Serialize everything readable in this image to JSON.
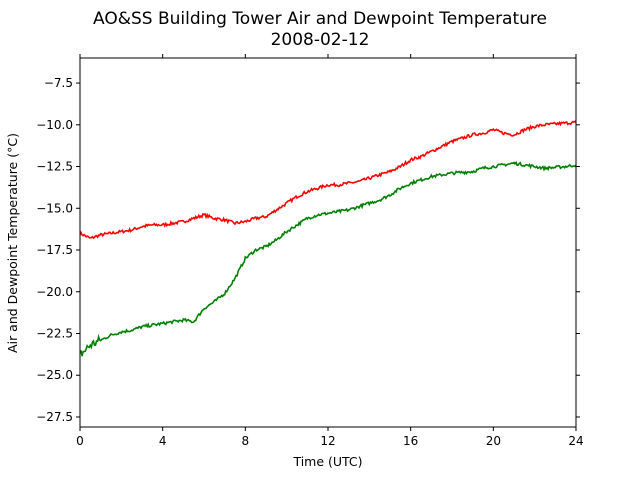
{
  "chart_data": {
    "type": "line",
    "title": "AO&SS Building Tower Air and Dewpoint Temperature",
    "subtitle": "2008-02-12",
    "xlabel": "Time (UTC)",
    "ylabel": "Air and Dewpoint Temperature (°C)",
    "xlim": [
      0,
      24
    ],
    "ylim": [
      -28.1,
      -6.0
    ],
    "x_ticks": [
      0,
      4,
      8,
      12,
      16,
      20,
      24
    ],
    "y_ticks": [
      -27.5,
      -25.0,
      -22.5,
      -20.0,
      -17.5,
      -15.0,
      -12.5,
      -10.0,
      -7.5
    ],
    "grid": false,
    "series": [
      {
        "color": "#ff0000",
        "x": [
          0,
          0.5,
          1,
          1.5,
          2,
          2.5,
          3,
          3.5,
          4,
          4.5,
          5,
          5.5,
          6,
          6.5,
          7,
          7.5,
          8,
          8.5,
          9,
          9.5,
          10,
          10.5,
          11,
          11.5,
          12,
          12.5,
          13,
          13.5,
          14,
          14.5,
          15,
          15.5,
          16,
          16.5,
          17,
          17.5,
          18,
          18.5,
          19,
          19.5,
          20,
          20.5,
          21,
          21.5,
          22,
          22.5,
          23,
          23.5,
          24
        ],
        "values": [
          -16.5,
          -16.8,
          -16.6,
          -16.5,
          -16.4,
          -16.3,
          -16.1,
          -16.0,
          -16.0,
          -15.9,
          -15.8,
          -15.6,
          -15.4,
          -15.6,
          -15.7,
          -15.9,
          -15.8,
          -15.6,
          -15.5,
          -15.1,
          -14.7,
          -14.3,
          -14.0,
          -13.8,
          -13.6,
          -13.6,
          -13.5,
          -13.4,
          -13.2,
          -13.0,
          -12.8,
          -12.5,
          -12.1,
          -11.9,
          -11.6,
          -11.3,
          -11.0,
          -10.8,
          -10.6,
          -10.5,
          -10.3,
          -10.5,
          -10.6,
          -10.3,
          -10.1,
          -10.0,
          -9.95,
          -9.9,
          -9.85
        ]
      },
      {
        "color": "#008000",
        "x": [
          0,
          0.5,
          1,
          1.5,
          2,
          2.5,
          3,
          3.5,
          4,
          4.5,
          5,
          5.5,
          6,
          6.5,
          7,
          7.5,
          8,
          8.5,
          9,
          9.5,
          10,
          10.5,
          11,
          11.5,
          12,
          12.5,
          13,
          13.5,
          14,
          14.5,
          15,
          15.5,
          16,
          16.5,
          17,
          17.5,
          18,
          18.5,
          19,
          19.5,
          20,
          20.5,
          21,
          21.5,
          22,
          22.5,
          23,
          23.5,
          24
        ],
        "values": [
          -23.8,
          -23.2,
          -22.9,
          -22.6,
          -22.4,
          -22.3,
          -22.1,
          -22.0,
          -21.9,
          -21.8,
          -21.7,
          -21.8,
          -21.0,
          -20.6,
          -20.1,
          -19.2,
          -18.0,
          -17.5,
          -17.3,
          -16.9,
          -16.4,
          -16.0,
          -15.6,
          -15.4,
          -15.3,
          -15.2,
          -15.1,
          -14.9,
          -14.7,
          -14.5,
          -14.2,
          -13.8,
          -13.5,
          -13.3,
          -13.1,
          -13.0,
          -12.9,
          -12.85,
          -12.8,
          -12.6,
          -12.5,
          -12.4,
          -12.3,
          -12.4,
          -12.5,
          -12.6,
          -12.55,
          -12.5,
          -12.4
        ]
      }
    ]
  }
}
